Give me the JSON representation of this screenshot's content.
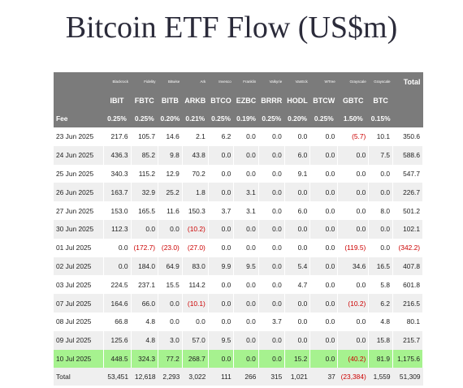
{
  "title": "Bitcoin ETF Flow (US$m)",
  "issuers": [
    "Blackrock",
    "Fidelity",
    "Bitwise",
    "Ark",
    "Invesco",
    "Franklin",
    "Valkyrie",
    "VanEck",
    "WTree",
    "Grayscale",
    "Grayscale"
  ],
  "total_header": "Total",
  "tickers": [
    "IBIT",
    "FBTC",
    "BITB",
    "ARKB",
    "BTCO",
    "EZBC",
    "BRRR",
    "HODL",
    "BTCW",
    "GBTC",
    "BTC"
  ],
  "fee_label": "Fee",
  "fees": [
    "0.25%",
    "0.25%",
    "0.20%",
    "0.21%",
    "0.25%",
    "0.19%",
    "0.25%",
    "0.20%",
    "0.25%",
    "1.50%",
    "0.15%"
  ],
  "rows": [
    {
      "date": "23 Jun 2025",
      "values": [
        "217.6",
        "105.7",
        "14.6",
        "2.1",
        "6.2",
        "0.0",
        "0.0",
        "0.0",
        "0.0",
        "(5.7)",
        "10.1"
      ],
      "total": "350.6"
    },
    {
      "date": "24 Jun 2025",
      "values": [
        "436.3",
        "85.2",
        "9.8",
        "43.8",
        "0.0",
        "0.0",
        "0.0",
        "6.0",
        "0.0",
        "0.0",
        "7.5"
      ],
      "total": "588.6"
    },
    {
      "date": "25 Jun 2025",
      "values": [
        "340.3",
        "115.2",
        "12.9",
        "70.2",
        "0.0",
        "0.0",
        "0.0",
        "9.1",
        "0.0",
        "0.0",
        "0.0"
      ],
      "total": "547.7"
    },
    {
      "date": "26 Jun 2025",
      "values": [
        "163.7",
        "32.9",
        "25.2",
        "1.8",
        "0.0",
        "3.1",
        "0.0",
        "0.0",
        "0.0",
        "0.0",
        "0.0"
      ],
      "total": "226.7"
    },
    {
      "date": "27 Jun 2025",
      "values": [
        "153.0",
        "165.5",
        "11.6",
        "150.3",
        "3.7",
        "3.1",
        "0.0",
        "6.0",
        "0.0",
        "0.0",
        "8.0"
      ],
      "total": "501.2"
    },
    {
      "date": "30 Jun 2025",
      "values": [
        "112.3",
        "0.0",
        "0.0",
        "(10.2)",
        "0.0",
        "0.0",
        "0.0",
        "0.0",
        "0.0",
        "0.0",
        "0.0"
      ],
      "total": "102.1"
    },
    {
      "date": "01 Jul 2025",
      "values": [
        "0.0",
        "(172.7)",
        "(23.0)",
        "(27.0)",
        "0.0",
        "0.0",
        "0.0",
        "0.0",
        "0.0",
        "(119.5)",
        "0.0"
      ],
      "total": "(342.2)"
    },
    {
      "date": "02 Jul 2025",
      "values": [
        "0.0",
        "184.0",
        "64.9",
        "83.0",
        "9.9",
        "9.5",
        "0.0",
        "5.4",
        "0.0",
        "34.6",
        "16.5"
      ],
      "total": "407.8"
    },
    {
      "date": "03 Jul 2025",
      "values": [
        "224.5",
        "237.1",
        "15.5",
        "114.2",
        "0.0",
        "0.0",
        "0.0",
        "4.7",
        "0.0",
        "0.0",
        "5.8"
      ],
      "total": "601.8"
    },
    {
      "date": "07 Jul 2025",
      "values": [
        "164.6",
        "66.0",
        "0.0",
        "(10.1)",
        "0.0",
        "0.0",
        "0.0",
        "0.0",
        "0.0",
        "(10.2)",
        "6.2"
      ],
      "total": "216.5"
    },
    {
      "date": "08 Jul 2025",
      "values": [
        "66.8",
        "4.8",
        "0.0",
        "0.0",
        "0.0",
        "0.0",
        "3.7",
        "0.0",
        "0.0",
        "0.0",
        "4.8"
      ],
      "total": "80.1"
    },
    {
      "date": "09 Jul 2025",
      "values": [
        "125.6",
        "4.8",
        "3.0",
        "57.0",
        "9.5",
        "0.0",
        "0.0",
        "0.0",
        "0.0",
        "0.0",
        "15.8"
      ],
      "total": "215.7"
    },
    {
      "date": "10 Jul 2025",
      "values": [
        "448.5",
        "324.3",
        "77.2",
        "268.7",
        "0.0",
        "0.0",
        "0.0",
        "15.2",
        "0.0",
        "(40.2)",
        "81.9"
      ],
      "total": "1,175.6",
      "highlight": true
    }
  ],
  "totals_label": "Total",
  "totals": [
    "53,451",
    "12,618",
    "2,293",
    "3,022",
    "111",
    "266",
    "315",
    "1,021",
    "37",
    "(23,384)",
    "1,559"
  ],
  "grand_total": "51,309",
  "colors": {
    "header_bg": "#7b7b7b",
    "highlight_row": "#a6f28f",
    "negative": "#cc0000",
    "stripe": "#efefef"
  }
}
